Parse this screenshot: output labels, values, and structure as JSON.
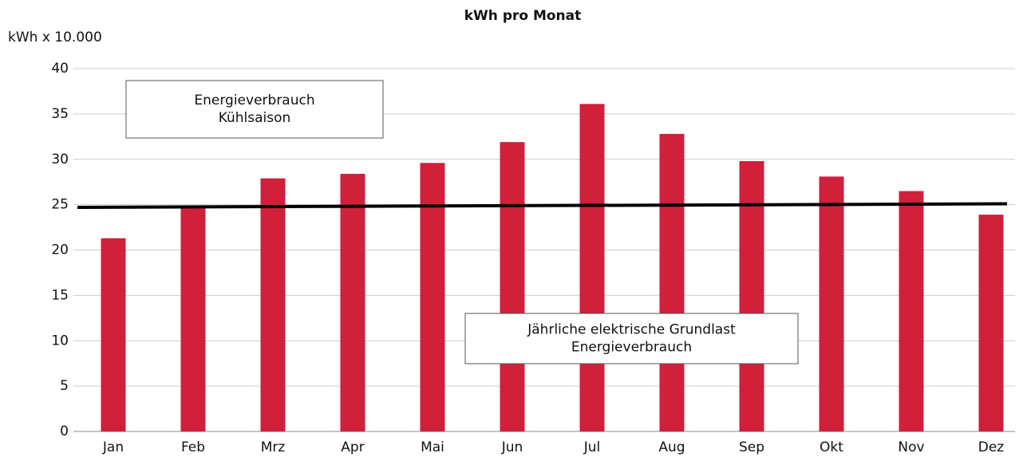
{
  "chart_data": {
    "type": "bar",
    "title": "kWh pro Monat",
    "y_axis_label": "kWh x 10.000",
    "categories": [
      "Jan",
      "Feb",
      "Mrz",
      "Apr",
      "Mai",
      "Jun",
      "Jul",
      "Aug",
      "Sep",
      "Okt",
      "Nov",
      "Dez"
    ],
    "values": [
      21.3,
      24.6,
      27.9,
      28.4,
      29.6,
      31.9,
      36.1,
      32.8,
      29.8,
      28.1,
      26.5,
      23.9
    ],
    "color": "#d0203a",
    "ylim": [
      0,
      40
    ],
    "yticks": [
      0,
      5,
      10,
      15,
      20,
      25,
      30,
      35,
      40
    ],
    "grid": true,
    "trend_line": {
      "values": [
        24.7,
        25.1
      ],
      "color": "#000000"
    },
    "annotations": [
      [
        "Energieverbrauch",
        "Kühlsaison"
      ],
      [
        "Jährliche elektrische Grundlast",
        "Energieverbrauch"
      ]
    ]
  }
}
